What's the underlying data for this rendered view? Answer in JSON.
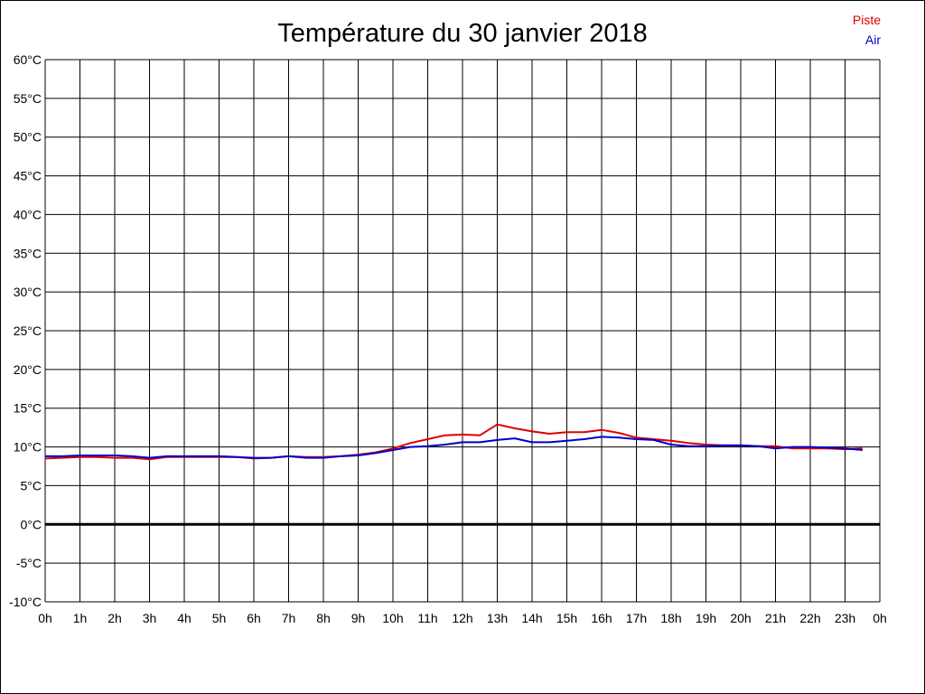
{
  "chart_data": {
    "type": "line",
    "title": "Température du 30 janvier 2018",
    "xlabel": "",
    "ylabel": "",
    "ylim": [
      -10,
      60
    ],
    "xlim": [
      0,
      24
    ],
    "grid": true,
    "zero_line": true,
    "legend_placement": "top-right",
    "y_ticks": [
      "60°C",
      "55°C",
      "50°C",
      "45°C",
      "40°C",
      "35°C",
      "30°C",
      "25°C",
      "20°C",
      "15°C",
      "10°C",
      "5°C",
      "0°C",
      "-5°C",
      "-10°C"
    ],
    "x_ticks": [
      "0h",
      "1h",
      "2h",
      "3h",
      "4h",
      "5h",
      "6h",
      "7h",
      "8h",
      "9h",
      "10h",
      "11h",
      "12h",
      "13h",
      "14h",
      "15h",
      "16h",
      "17h",
      "18h",
      "19h",
      "20h",
      "21h",
      "22h",
      "23h",
      "0h"
    ],
    "series": [
      {
        "name": "Piste",
        "color": "#dd0000",
        "x": [
          0,
          0.5,
          1,
          1.5,
          2,
          2.5,
          3,
          3.5,
          4,
          4.5,
          5,
          5.5,
          6,
          6.5,
          7,
          7.5,
          8,
          8.5,
          9,
          9.5,
          10,
          10.5,
          11,
          11.5,
          12,
          12.5,
          13,
          13.5,
          14,
          14.5,
          15,
          15.5,
          16,
          16.5,
          17,
          17.5,
          18,
          18.5,
          19,
          19.5,
          20,
          20.5,
          21,
          21.5,
          22,
          22.5,
          23,
          23.5
        ],
        "y": [
          8.5,
          8.6,
          8.7,
          8.7,
          8.6,
          8.6,
          8.4,
          8.7,
          8.7,
          8.7,
          8.7,
          8.7,
          8.5,
          8.6,
          8.8,
          8.7,
          8.7,
          8.8,
          9.0,
          9.3,
          9.8,
          10.5,
          11.0,
          11.5,
          11.6,
          11.5,
          12.9,
          12.4,
          12.0,
          11.7,
          11.9,
          11.9,
          12.2,
          11.8,
          11.2,
          11.0,
          10.8,
          10.5,
          10.3,
          10.2,
          10.2,
          10.1,
          10.1,
          9.8,
          9.8,
          9.8,
          9.7,
          9.8
        ]
      },
      {
        "name": "Air",
        "color": "#0000cc",
        "x": [
          0,
          0.5,
          1,
          1.5,
          2,
          2.5,
          3,
          3.5,
          4,
          4.5,
          5,
          5.5,
          6,
          6.5,
          7,
          7.5,
          8,
          8.5,
          9,
          9.5,
          10,
          10.5,
          11,
          11.5,
          12,
          12.5,
          13,
          13.5,
          14,
          14.5,
          15,
          15.5,
          16,
          16.5,
          17,
          17.5,
          18,
          18.5,
          19,
          19.5,
          20,
          20.5,
          21,
          21.5,
          22,
          22.5,
          23,
          23.5
        ],
        "y": [
          8.8,
          8.8,
          8.9,
          8.9,
          8.9,
          8.8,
          8.6,
          8.8,
          8.8,
          8.8,
          8.8,
          8.7,
          8.6,
          8.6,
          8.8,
          8.6,
          8.6,
          8.8,
          8.9,
          9.2,
          9.6,
          10.0,
          10.1,
          10.3,
          10.6,
          10.6,
          10.9,
          11.1,
          10.6,
          10.6,
          10.8,
          11.0,
          11.3,
          11.2,
          11.0,
          10.9,
          10.3,
          10.1,
          10.1,
          10.2,
          10.2,
          10.1,
          9.8,
          10.0,
          10.0,
          9.9,
          9.8,
          9.6
        ]
      }
    ]
  }
}
